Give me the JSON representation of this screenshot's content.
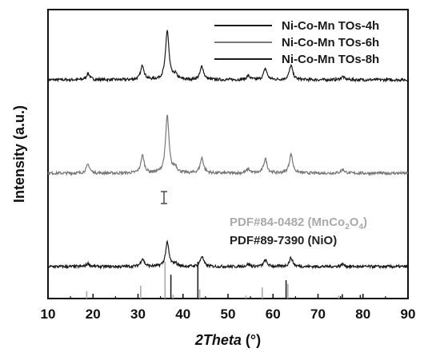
{
  "chart_data": {
    "type": "line",
    "xlabel_italic": "2Theta",
    "xlabel_unit": " (°)",
    "ylabel": "Intensity (a.u.)",
    "xlim": [
      10,
      90
    ],
    "x_ticks": [
      "10",
      "20",
      "30",
      "40",
      "50",
      "60",
      "70",
      "80",
      "90"
    ],
    "y_scale": "arbitrary, stacked patterns",
    "grid": false,
    "legend_position": "top-right",
    "series": [
      {
        "name": "Ni-Co-Mn TOs-4h",
        "color": "#1a1a1a",
        "offset": 2.0,
        "peaks": [
          [
            18.9,
            0.08
          ],
          [
            31.0,
            0.18
          ],
          [
            36.5,
            0.62
          ],
          [
            38.3,
            0.06
          ],
          [
            44.2,
            0.17
          ],
          [
            54.5,
            0.05
          ],
          [
            58.3,
            0.14
          ],
          [
            64.0,
            0.18
          ],
          [
            75.5,
            0.04
          ]
        ]
      },
      {
        "name": "Ni-Co-Mn TOs-6h",
        "color": "#777777",
        "offset": 1.0,
        "peaks": [
          [
            18.9,
            0.11
          ],
          [
            31.0,
            0.22
          ],
          [
            36.5,
            0.72
          ],
          [
            38.3,
            0.07
          ],
          [
            44.2,
            0.19
          ],
          [
            54.5,
            0.05
          ],
          [
            58.3,
            0.18
          ],
          [
            64.0,
            0.24
          ],
          [
            75.5,
            0.05
          ]
        ]
      },
      {
        "name": "Ni-Co-Mn TOs-8h",
        "color": "#1a1a1a",
        "offset": 0.0,
        "peaks": [
          [
            18.9,
            0.04
          ],
          [
            31.0,
            0.1
          ],
          [
            36.5,
            0.3
          ],
          [
            38.3,
            0.04
          ],
          [
            44.2,
            0.13
          ],
          [
            54.5,
            0.03
          ],
          [
            58.3,
            0.08
          ],
          [
            64.0,
            0.11
          ],
          [
            75.5,
            0.03
          ]
        ]
      }
    ],
    "reference_patterns": [
      {
        "label_main": "PDF#84-0482 (MnCo",
        "label_sub1": "2",
        "label_mid": "O",
        "label_sub2": "4",
        "label_end": ")",
        "color": "#aaaaaa",
        "lines": [
          [
            18.6,
            0.2
          ],
          [
            30.6,
            0.35
          ],
          [
            36.0,
            1.0
          ],
          [
            37.8,
            0.1
          ],
          [
            43.7,
            0.25
          ],
          [
            54.0,
            0.08
          ],
          [
            57.6,
            0.3
          ],
          [
            63.3,
            0.4
          ],
          [
            74.6,
            0.08
          ]
        ]
      },
      {
        "label_main": "PDF#89-7390 (NiO)",
        "color": "#222222",
        "lines": [
          [
            37.3,
            0.65
          ],
          [
            43.3,
            1.0
          ],
          [
            62.9,
            0.5
          ],
          [
            75.4,
            0.12
          ],
          [
            79.4,
            0.1
          ]
        ]
      }
    ]
  }
}
